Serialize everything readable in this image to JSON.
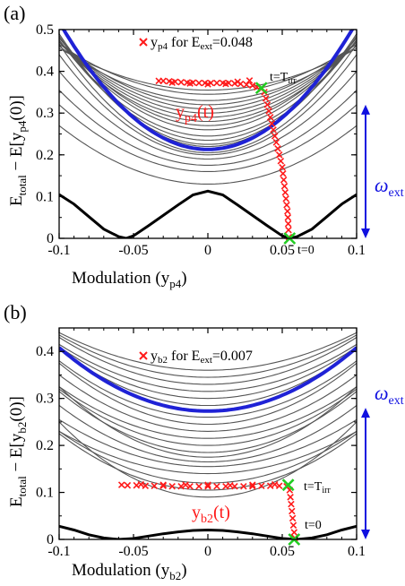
{
  "colors": {
    "ground": "#000000",
    "excited": "#555555",
    "highlight": "#1f22d6",
    "trajectory": "#ff1a1a",
    "marker": "#22cc22",
    "arrow": "#1010e0"
  },
  "chart_data": [
    {
      "type": "line",
      "panel_label": "(a)",
      "xlabel_main": "Modulation (y",
      "xlabel_sub": "p4",
      "xlabel_end": ")",
      "ylabel_main": "E",
      "ylabel_sub1": "total",
      "ylabel_mid": " − E[y",
      "ylabel_sub2": "p4",
      "ylabel_end": "(0)]",
      "xlim": [
        -0.1,
        0.1
      ],
      "ylim": [
        0,
        0.5
      ],
      "xticks": [
        "-0.1",
        "-0.05",
        "0",
        "0.05",
        "0.1"
      ],
      "yticks": [
        "0",
        "0.1",
        "0.2",
        "0.3",
        "0.4",
        "0.5"
      ],
      "legend_main": "y",
      "legend_sub": "p4",
      "legend_mid": " for E",
      "legend_sub2": "ext",
      "legend_end": "=0.048",
      "curve_label_main": "y",
      "curve_label_sub": "p4",
      "curve_label_end": "(t)",
      "t_irr_main": "t=T",
      "t_irr_sub": "irr",
      "t0_label": "t=0",
      "omega_main": "ω",
      "omega_sub": "ext",
      "ground": [
        [
          -0.1,
          0.105
        ],
        [
          -0.09,
          0.082
        ],
        [
          -0.08,
          0.052
        ],
        [
          -0.07,
          0.022
        ],
        [
          -0.06,
          0.004
        ],
        [
          -0.055,
          0.0
        ],
        [
          -0.05,
          0.006
        ],
        [
          -0.04,
          0.03
        ],
        [
          -0.03,
          0.055
        ],
        [
          -0.02,
          0.08
        ],
        [
          -0.01,
          0.104
        ],
        [
          0.0,
          0.113
        ],
        [
          0.01,
          0.104
        ],
        [
          0.02,
          0.08
        ],
        [
          0.03,
          0.055
        ],
        [
          0.04,
          0.03
        ],
        [
          0.05,
          0.006
        ],
        [
          0.055,
          0.0
        ],
        [
          0.06,
          0.004
        ],
        [
          0.07,
          0.022
        ],
        [
          0.08,
          0.052
        ],
        [
          0.09,
          0.082
        ],
        [
          0.1,
          0.105
        ]
      ],
      "highlight": {
        "min": 0.213,
        "curv": 30.5
      },
      "excited": [
        {
          "min": 0.13,
          "curv": 14
        },
        {
          "min": 0.16,
          "curv": 16
        },
        {
          "min": 0.175,
          "curv": 18
        },
        {
          "min": 0.19,
          "curv": 21
        },
        {
          "min": 0.2,
          "curv": 24
        },
        {
          "min": 0.205,
          "curv": 26
        },
        {
          "min": 0.22,
          "curv": 27
        },
        {
          "min": 0.225,
          "curv": 26
        },
        {
          "min": 0.235,
          "curv": 24
        },
        {
          "min": 0.245,
          "curv": 23
        },
        {
          "min": 0.26,
          "curv": 22
        },
        {
          "min": 0.27,
          "curv": 21
        },
        {
          "min": 0.28,
          "curv": 19
        },
        {
          "min": 0.29,
          "curv": 18
        },
        {
          "min": 0.3,
          "curv": 17
        },
        {
          "min": 0.31,
          "curv": 16
        },
        {
          "min": 0.32,
          "curv": 15
        },
        {
          "min": 0.33,
          "curv": 13
        },
        {
          "min": 0.345,
          "curv": 12
        },
        {
          "min": 0.355,
          "curv": 10
        }
      ],
      "trajectory": [
        [
          0.0545,
          0.003
        ],
        [
          0.0542,
          0.02
        ],
        [
          0.054,
          0.035
        ],
        [
          0.0538,
          0.05
        ],
        [
          0.0535,
          0.065
        ],
        [
          0.053,
          0.08
        ],
        [
          0.0525,
          0.095
        ],
        [
          0.052,
          0.11
        ],
        [
          0.0515,
          0.125
        ],
        [
          0.051,
          0.14
        ],
        [
          0.0505,
          0.155
        ],
        [
          0.05,
          0.17
        ],
        [
          0.049,
          0.185
        ],
        [
          0.048,
          0.2
        ],
        [
          0.047,
          0.215
        ],
        [
          0.046,
          0.23
        ],
        [
          0.045,
          0.245
        ],
        [
          0.044,
          0.26
        ],
        [
          0.043,
          0.275
        ],
        [
          0.042,
          0.29
        ],
        [
          0.041,
          0.305
        ],
        [
          0.04,
          0.32
        ],
        [
          0.039,
          0.335
        ],
        [
          0.038,
          0.35
        ],
        [
          0.036,
          0.358
        ],
        [
          0.033,
          0.362
        ],
        [
          0.03,
          0.366
        ],
        [
          0.026,
          0.368
        ],
        [
          0.022,
          0.37
        ],
        [
          0.018,
          0.371
        ],
        [
          0.014,
          0.372
        ],
        [
          0.01,
          0.372
        ],
        [
          0.006,
          0.372
        ],
        [
          0.002,
          0.372
        ],
        [
          -0.002,
          0.372
        ],
        [
          -0.006,
          0.372
        ],
        [
          -0.01,
          0.373
        ],
        [
          -0.014,
          0.373
        ],
        [
          -0.018,
          0.374
        ],
        [
          -0.022,
          0.375
        ],
        [
          -0.026,
          0.376
        ],
        [
          -0.03,
          0.377
        ],
        [
          -0.033,
          0.377
        ],
        [
          0.028,
          0.378
        ],
        [
          0.02,
          0.375
        ],
        [
          0.012,
          0.37
        ],
        [
          0.0,
          0.369
        ],
        [
          -0.012,
          0.371
        ],
        [
          -0.024,
          0.373
        ]
      ],
      "marker_start": [
        0.055,
        0.0
      ],
      "marker_irr": [
        0.036,
        0.36
      ],
      "omega_range": [
        0,
        0.32
      ]
    },
    {
      "type": "line",
      "panel_label": "(b)",
      "xlabel_main": "Modulation (y",
      "xlabel_sub": "b2",
      "xlabel_end": ")",
      "ylabel_main": "E",
      "ylabel_sub1": "total",
      "ylabel_mid": " − E[y",
      "ylabel_sub2": "b2",
      "ylabel_end": "(0)]",
      "xlim": [
        -0.1,
        0.1
      ],
      "ylim": [
        0,
        0.45
      ],
      "xticks": [
        "-0.1",
        "-0.05",
        "0",
        "0.05",
        "0.1"
      ],
      "yticks": [
        "0",
        "0.1",
        "0.2",
        "0.3",
        "0.4"
      ],
      "legend_main": "y",
      "legend_sub": "b2",
      "legend_mid": " for E",
      "legend_sub2": "ext",
      "legend_end": "=0.007",
      "curve_label_main": "y",
      "curve_label_sub": "b2",
      "curve_label_end": "(t)",
      "t_irr_main": "t=T",
      "t_irr_sub": "irr",
      "t0_label": "t=0",
      "omega_main": "ω",
      "omega_sub": "ext",
      "ground": [
        [
          -0.1,
          0.028
        ],
        [
          -0.09,
          0.02
        ],
        [
          -0.08,
          0.01
        ],
        [
          -0.07,
          0.003
        ],
        [
          -0.06,
          0.0
        ],
        [
          -0.05,
          0.002
        ],
        [
          -0.04,
          0.007
        ],
        [
          -0.03,
          0.012
        ],
        [
          -0.02,
          0.016
        ],
        [
          -0.01,
          0.019
        ],
        [
          0.0,
          0.02
        ],
        [
          0.01,
          0.019
        ],
        [
          0.02,
          0.016
        ],
        [
          0.03,
          0.012
        ],
        [
          0.04,
          0.007
        ],
        [
          0.05,
          0.002
        ],
        [
          0.06,
          0.0
        ],
        [
          0.07,
          0.003
        ],
        [
          0.08,
          0.01
        ],
        [
          0.09,
          0.02
        ],
        [
          0.1,
          0.028
        ]
      ],
      "highlight": {
        "min": 0.273,
        "curv": 13.5
      },
      "excited": [
        {
          "min": 0.09,
          "curv": 16
        },
        {
          "min": 0.105,
          "curv": 12
        },
        {
          "min": 0.12,
          "curv": 11
        },
        {
          "min": 0.14,
          "curv": 9
        },
        {
          "min": 0.155,
          "curv": 10
        },
        {
          "min": 0.165,
          "curv": 12
        },
        {
          "min": 0.175,
          "curv": 15
        },
        {
          "min": 0.185,
          "curv": 13
        },
        {
          "min": 0.2,
          "curv": 12
        },
        {
          "min": 0.215,
          "curv": 11
        },
        {
          "min": 0.23,
          "curv": 12
        },
        {
          "min": 0.245,
          "curv": 13
        },
        {
          "min": 0.26,
          "curv": 12
        },
        {
          "min": 0.285,
          "curv": 12
        },
        {
          "min": 0.3,
          "curv": 11
        },
        {
          "min": 0.315,
          "curv": 10
        },
        {
          "min": 0.33,
          "curv": 10
        },
        {
          "min": 0.345,
          "curv": 9
        },
        {
          "min": 0.36,
          "curv": 8
        }
      ],
      "trajectory": [
        [
          0.0585,
          0.003
        ],
        [
          0.058,
          0.015
        ],
        [
          0.0575,
          0.03
        ],
        [
          0.057,
          0.045
        ],
        [
          0.0565,
          0.06
        ],
        [
          0.056,
          0.075
        ],
        [
          0.0555,
          0.09
        ],
        [
          0.055,
          0.105
        ],
        [
          0.053,
          0.113
        ],
        [
          0.048,
          0.114
        ],
        [
          0.042,
          0.114
        ],
        [
          0.036,
          0.114
        ],
        [
          0.03,
          0.113
        ],
        [
          0.024,
          0.113
        ],
        [
          0.018,
          0.113
        ],
        [
          0.012,
          0.113
        ],
        [
          0.006,
          0.113
        ],
        [
          0.0,
          0.113
        ],
        [
          -0.006,
          0.113
        ],
        [
          -0.012,
          0.113
        ],
        [
          -0.018,
          0.113
        ],
        [
          -0.024,
          0.113
        ],
        [
          -0.03,
          0.114
        ],
        [
          -0.036,
          0.114
        ],
        [
          -0.042,
          0.114
        ],
        [
          -0.048,
          0.115
        ],
        [
          -0.054,
          0.115
        ],
        [
          -0.058,
          0.116
        ],
        [
          0.045,
          0.117
        ],
        [
          0.03,
          0.116
        ],
        [
          0.015,
          0.115
        ],
        [
          0.0,
          0.116
        ],
        [
          -0.015,
          0.116
        ],
        [
          -0.03,
          0.116
        ],
        [
          -0.045,
          0.117
        ]
      ],
      "marker_start": [
        0.058,
        0.0
      ],
      "marker_irr": [
        0.054,
        0.116
      ],
      "omega_range": [
        0,
        0.28
      ]
    }
  ]
}
